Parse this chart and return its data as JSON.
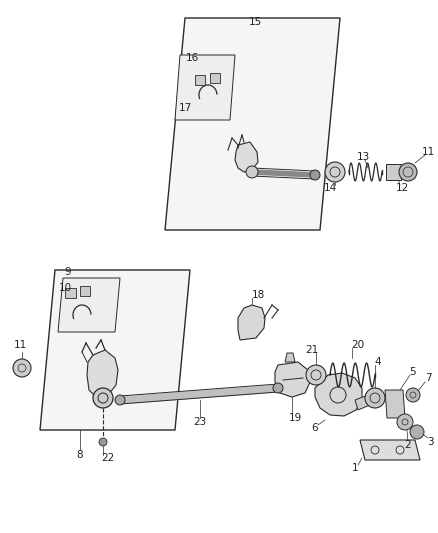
{
  "bg_color": "#ffffff",
  "fig_width": 4.38,
  "fig_height": 5.33,
  "dpi": 100,
  "lc": "#2a2a2a",
  "fc_light": "#e8e8e8",
  "fc_mid": "#cccccc",
  "fc_dark": "#aaaaaa",
  "font_size": 7.5,
  "text_color": "#222222"
}
